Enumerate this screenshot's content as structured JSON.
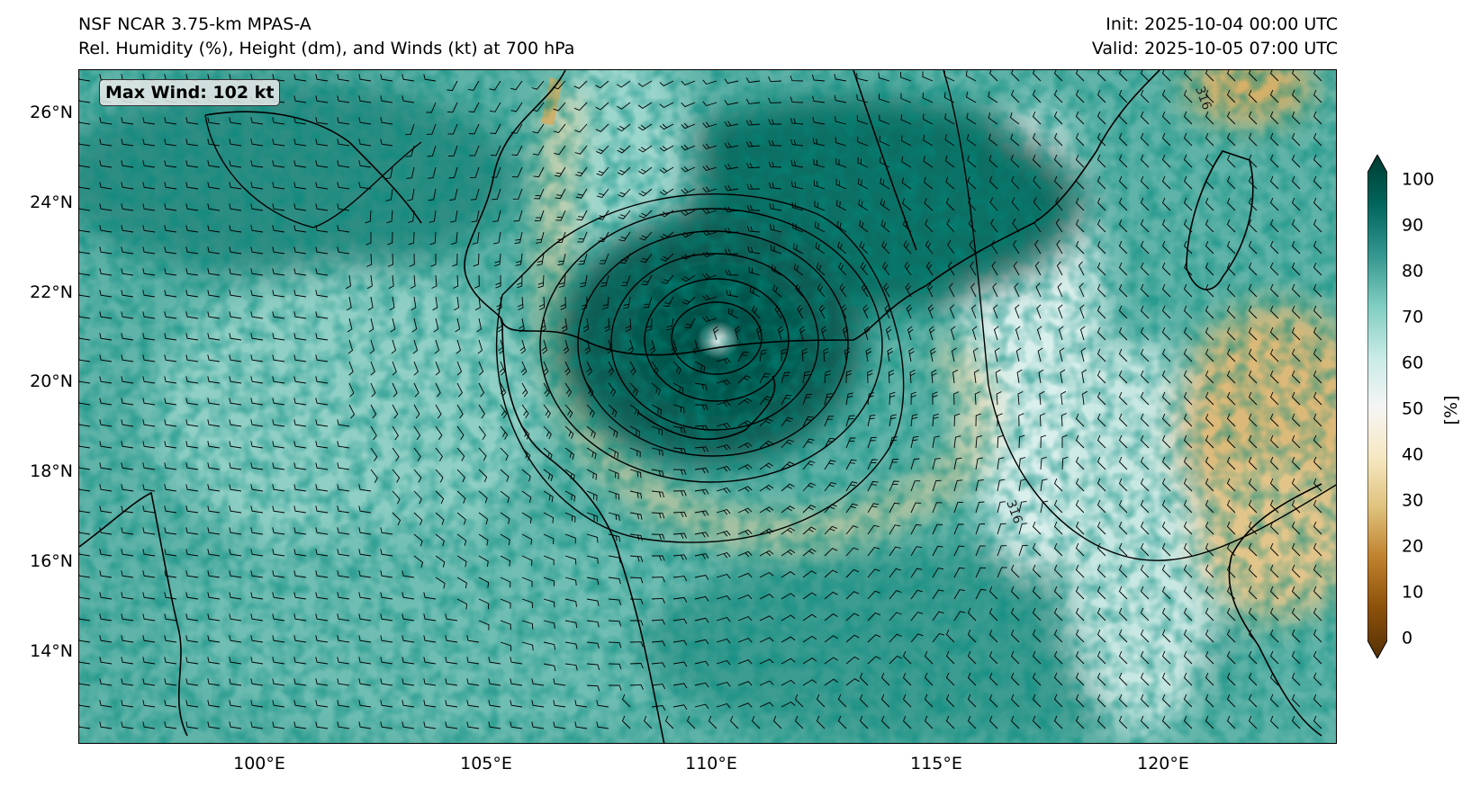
{
  "header": {
    "title_left": "NSF NCAR 3.75-km MPAS-A",
    "subtitle_left": "Rel. Humidity (%), Height (dm), and Winds (kt) at 700 hPa",
    "init": "Init: 2025-10-04 00:00 UTC",
    "valid": "Valid: 2025-10-05 07:00 UTC"
  },
  "annotation": {
    "max_wind": "Max Wind: 102 kt"
  },
  "axes": {
    "y_ticks": [
      "26°N",
      "24°N",
      "22°N",
      "20°N",
      "18°N",
      "16°N",
      "14°N"
    ],
    "x_ticks": [
      "100°E",
      "105°E",
      "110°E",
      "115°E",
      "120°E"
    ],
    "contour_labels": [
      "316",
      "316"
    ]
  },
  "colorbar": {
    "label": "[%]",
    "ticks": [
      "100",
      "90",
      "80",
      "70",
      "60",
      "50",
      "40",
      "30",
      "20",
      "10",
      "0"
    ],
    "colors": [
      "#543005",
      "#8c510a",
      "#bf812d",
      "#dfc27d",
      "#f6e8c3",
      "#f5f5f5",
      "#c7eae5",
      "#80cdc1",
      "#35978f",
      "#01665e",
      "#003c30"
    ]
  }
}
